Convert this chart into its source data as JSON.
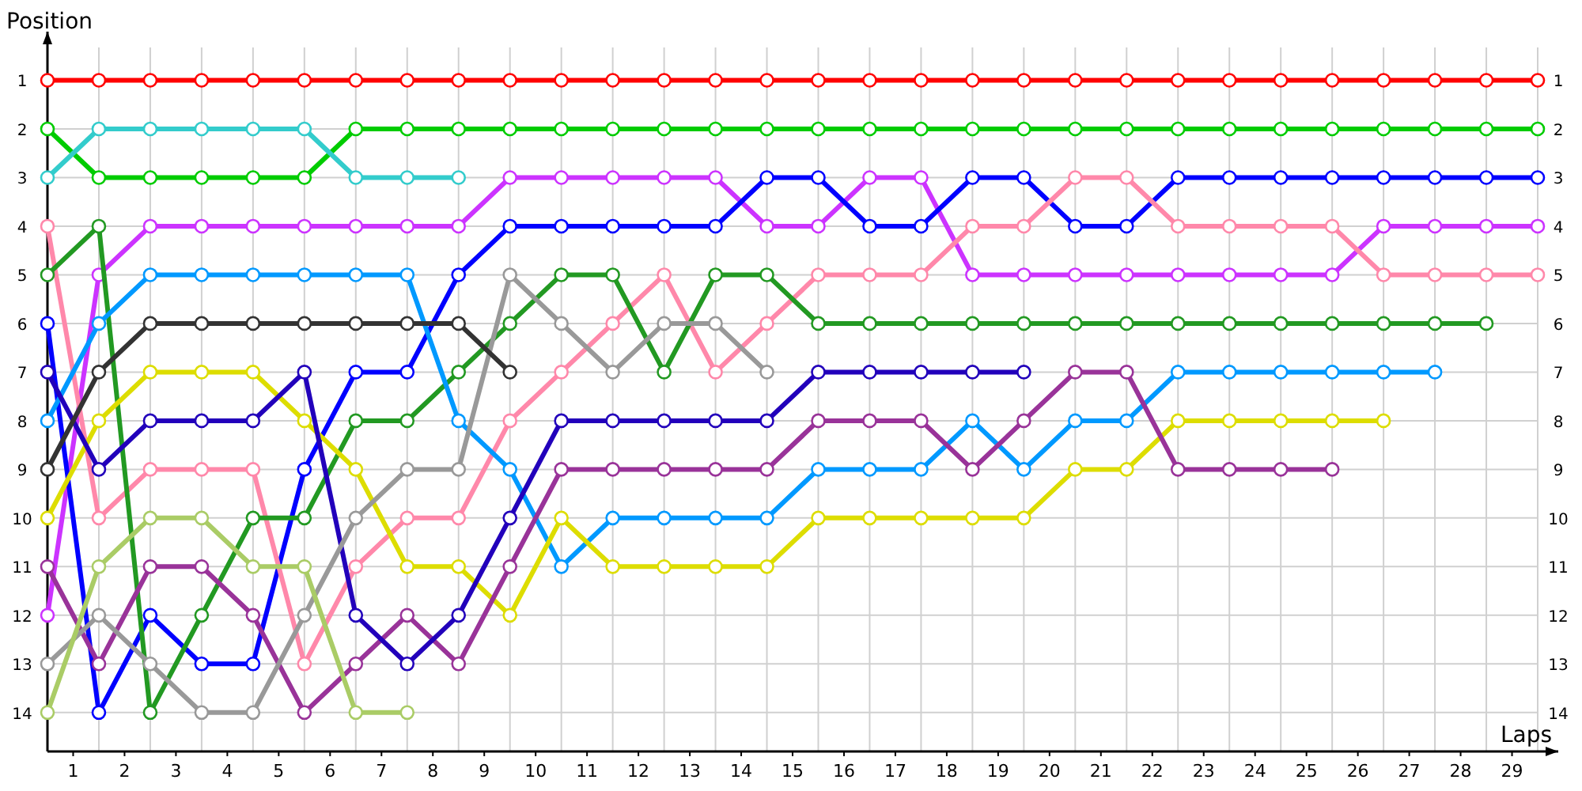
{
  "chart_data": {
    "type": "line",
    "xlabel": "Laps",
    "ylabel": "Position",
    "x": [
      0,
      1,
      2,
      3,
      4,
      5,
      6,
      7,
      8,
      9,
      10,
      11,
      12,
      13,
      14,
      15,
      16,
      17,
      18,
      19,
      20,
      21,
      22,
      23,
      24,
      25,
      26,
      27,
      28,
      29
    ],
    "xlim": [
      0,
      29.4
    ],
    "xticks": [
      {
        "value": 0,
        "label": null
      },
      {
        "value": 0.5,
        "label": "1"
      },
      {
        "value": 1,
        "label": null
      },
      {
        "value": 1.5,
        "label": "2"
      },
      {
        "value": 2,
        "label": null
      },
      {
        "value": 2.5,
        "label": "3"
      },
      {
        "value": 3,
        "label": null
      },
      {
        "value": 3.5,
        "label": "4"
      },
      {
        "value": 4,
        "label": null
      },
      {
        "value": 4.5,
        "label": "5"
      },
      {
        "value": 5,
        "label": null
      },
      {
        "value": 5.5,
        "label": "6"
      },
      {
        "value": 6,
        "label": null
      },
      {
        "value": 6.5,
        "label": "7"
      },
      {
        "value": 7,
        "label": null
      },
      {
        "value": 7.5,
        "label": "8"
      },
      {
        "value": 8,
        "label": null
      },
      {
        "value": 8.5,
        "label": "9"
      },
      {
        "value": 9,
        "label": null
      },
      {
        "value": 9.5,
        "label": "10"
      },
      {
        "value": 10,
        "label": null
      },
      {
        "value": 10.5,
        "label": "11"
      },
      {
        "value": 11,
        "label": null
      },
      {
        "value": 11.5,
        "label": "12"
      },
      {
        "value": 12,
        "label": null
      },
      {
        "value": 12.5,
        "label": "13"
      },
      {
        "value": 13,
        "label": null
      },
      {
        "value": 13.5,
        "label": "14"
      },
      {
        "value": 14,
        "label": null
      },
      {
        "value": 14.5,
        "label": "15"
      },
      {
        "value": 15,
        "label": null
      },
      {
        "value": 15.5,
        "label": "16"
      },
      {
        "value": 16,
        "label": null
      },
      {
        "value": 16.5,
        "label": "17"
      },
      {
        "value": 17,
        "label": null
      },
      {
        "value": 17.5,
        "label": "18"
      },
      {
        "value": 18,
        "label": null
      },
      {
        "value": 18.5,
        "label": "19"
      },
      {
        "value": 19,
        "label": null
      },
      {
        "value": 19.5,
        "label": "20"
      },
      {
        "value": 20,
        "label": null
      },
      {
        "value": 20.5,
        "label": "21"
      },
      {
        "value": 21,
        "label": null
      },
      {
        "value": 21.5,
        "label": "22"
      },
      {
        "value": 22,
        "label": null
      },
      {
        "value": 22.5,
        "label": "23"
      },
      {
        "value": 23,
        "label": null
      },
      {
        "value": 23.5,
        "label": "24"
      },
      {
        "value": 24,
        "label": null
      },
      {
        "value": 24.5,
        "label": "25"
      },
      {
        "value": 25,
        "label": null
      },
      {
        "value": 25.5,
        "label": "26"
      },
      {
        "value": 26,
        "label": null
      },
      {
        "value": 26.5,
        "label": "27"
      },
      {
        "value": 27,
        "label": null
      },
      {
        "value": 27.5,
        "label": "28"
      },
      {
        "value": 28,
        "label": null
      },
      {
        "value": 28.5,
        "label": "29"
      },
      {
        "value": 29,
        "label": null
      }
    ],
    "ylim": [
      14.8,
      0
    ],
    "yticks": [
      1,
      2,
      3,
      4,
      5,
      6,
      7,
      8,
      9,
      10,
      11,
      12,
      13,
      14
    ],
    "y2lim": [
      14.8,
      0
    ],
    "y2ticks": [
      1,
      2,
      3,
      4,
      5,
      6,
      7,
      8,
      9,
      10,
      11,
      12,
      13,
      14
    ],
    "grid": true,
    "marker": "circle",
    "line_style": "solid",
    "series": [
      {
        "color": "#ff0000",
        "values": [
          1,
          1,
          1,
          1,
          1,
          1,
          1,
          1,
          1,
          1,
          1,
          1,
          1,
          1,
          1,
          1,
          1,
          1,
          1,
          1,
          1,
          1,
          1,
          1,
          1,
          1,
          1,
          1,
          1,
          1
        ]
      },
      {
        "color": "#00cc00",
        "values": [
          2,
          3,
          3,
          3,
          3,
          3,
          2,
          2,
          2,
          2,
          2,
          2,
          2,
          2,
          2,
          2,
          2,
          2,
          2,
          2,
          2,
          2,
          2,
          2,
          2,
          2,
          2,
          2,
          2,
          2
        ]
      },
      {
        "color": "#33cccc",
        "values": [
          3,
          2,
          2,
          2,
          2,
          2,
          3,
          3,
          3,
          null,
          null,
          null,
          null,
          null,
          null,
          null,
          null,
          null,
          null,
          null,
          null,
          null,
          null,
          null,
          null,
          null,
          null,
          null,
          null,
          null
        ]
      },
      {
        "color": "#cc33ff",
        "values": [
          12,
          5,
          4,
          4,
          4,
          4,
          4,
          4,
          4,
          3,
          3,
          3,
          3,
          3,
          4,
          4,
          3,
          3,
          5,
          5,
          5,
          5,
          5,
          5,
          5,
          5,
          4,
          4,
          4,
          4
        ]
      },
      {
        "color": "#0000ff",
        "values": [
          6,
          14,
          12,
          13,
          13,
          9,
          7,
          7,
          5,
          4,
          4,
          4,
          4,
          4,
          3,
          3,
          4,
          4,
          3,
          3,
          4,
          4,
          3,
          3,
          3,
          3,
          3,
          3,
          3,
          3
        ]
      },
      {
        "color": "#ff88aa",
        "values": [
          4,
          10,
          9,
          9,
          9,
          13,
          11,
          10,
          10,
          8,
          7,
          6,
          5,
          7,
          6,
          5,
          5,
          5,
          4,
          4,
          3,
          3,
          4,
          4,
          4,
          4,
          5,
          5,
          5,
          5
        ]
      },
      {
        "color": "#229922",
        "values": [
          5,
          4,
          14,
          12,
          10,
          10,
          8,
          8,
          7,
          6,
          5,
          5,
          7,
          5,
          5,
          6,
          6,
          6,
          6,
          6,
          6,
          6,
          6,
          6,
          6,
          6,
          6,
          6,
          6,
          null
        ]
      },
      {
        "color": "#0099ff",
        "values": [
          8,
          6,
          5,
          5,
          5,
          5,
          5,
          5,
          8,
          9,
          11,
          10,
          10,
          10,
          10,
          9,
          9,
          9,
          8,
          9,
          8,
          8,
          7,
          7,
          7,
          7,
          7,
          7,
          null,
          null
        ]
      },
      {
        "color": "#dddd00",
        "values": [
          10,
          8,
          7,
          7,
          7,
          8,
          9,
          11,
          11,
          12,
          10,
          11,
          11,
          11,
          11,
          10,
          10,
          10,
          10,
          10,
          9,
          9,
          8,
          8,
          8,
          8,
          8,
          null,
          null,
          null
        ]
      },
      {
        "color": "#993399",
        "values": [
          11,
          13,
          11,
          11,
          12,
          14,
          13,
          12,
          13,
          11,
          9,
          9,
          9,
          9,
          9,
          8,
          8,
          8,
          9,
          8,
          7,
          7,
          9,
          9,
          9,
          9,
          null,
          null,
          null,
          null
        ]
      },
      {
        "color": "#2200bb",
        "values": [
          7,
          9,
          8,
          8,
          8,
          7,
          12,
          13,
          12,
          10,
          8,
          8,
          8,
          8,
          8,
          7,
          7,
          7,
          7,
          7,
          null,
          null,
          null,
          null,
          null,
          null,
          null,
          null,
          null,
          null
        ]
      },
      {
        "color": "#999999",
        "values": [
          13,
          12,
          13,
          14,
          14,
          12,
          10,
          9,
          9,
          5,
          6,
          7,
          6,
          6,
          7,
          null,
          null,
          null,
          null,
          null,
          null,
          null,
          null,
          null,
          null,
          null,
          null,
          null,
          null,
          null
        ]
      },
      {
        "color": "#333333",
        "values": [
          9,
          7,
          6,
          6,
          6,
          6,
          6,
          6,
          6,
          7,
          null,
          null,
          null,
          null,
          null,
          null,
          null,
          null,
          null,
          null,
          null,
          null,
          null,
          null,
          null,
          null,
          null,
          null,
          null,
          null
        ]
      },
      {
        "color": "#aacc66",
        "values": [
          14,
          11,
          10,
          10,
          11,
          11,
          14,
          14,
          null,
          null,
          null,
          null,
          null,
          null,
          null,
          null,
          null,
          null,
          null,
          null,
          null,
          null,
          null,
          null,
          null,
          null,
          null,
          null,
          null,
          null
        ]
      }
    ]
  }
}
